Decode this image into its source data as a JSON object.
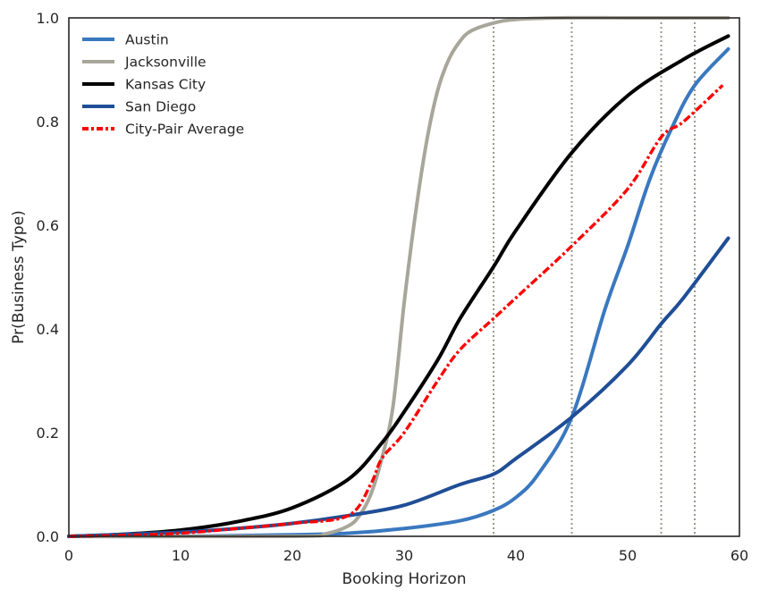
{
  "chart_data": {
    "type": "line",
    "xlabel": "Booking Horizon",
    "ylabel": "Pr(Business Type)",
    "xlim": [
      0,
      60
    ],
    "ylim": [
      0,
      1.0
    ],
    "x_ticks": [
      "0",
      "10",
      "20",
      "30",
      "40",
      "50",
      "60"
    ],
    "y_ticks": [
      "0.0",
      "0.2",
      "0.4",
      "0.6",
      "0.8",
      "1.0"
    ],
    "grid": false,
    "legend_position": "top-left",
    "vertical_reference_lines": [
      38,
      45,
      53,
      56
    ],
    "reference_line_color": "#9a9a8a",
    "series": [
      {
        "name": "Austin",
        "color": "#3a78bf",
        "style": "solid",
        "x": [
          0,
          10,
          20,
          25,
          30,
          35,
          38,
          40,
          42,
          45,
          48,
          50,
          52,
          54,
          56,
          59
        ],
        "y": [
          0.0,
          0.0,
          0.003,
          0.006,
          0.015,
          0.03,
          0.05,
          0.075,
          0.12,
          0.23,
          0.44,
          0.56,
          0.69,
          0.79,
          0.87,
          0.94
        ]
      },
      {
        "name": "Jacksonville",
        "color": "#a8a69a",
        "style": "solid",
        "x": [
          0,
          20,
          23,
          25,
          26,
          27,
          28,
          29,
          30,
          31,
          32,
          33,
          34,
          35,
          36,
          38,
          40,
          44,
          50,
          59
        ],
        "y": [
          0.0,
          0.0,
          0.005,
          0.02,
          0.04,
          0.08,
          0.15,
          0.25,
          0.45,
          0.62,
          0.76,
          0.86,
          0.92,
          0.955,
          0.975,
          0.99,
          0.997,
          1.0,
          1.0,
          1.0
        ]
      },
      {
        "name": "Kansas City",
        "color": "#000000",
        "style": "solid",
        "x": [
          0,
          5,
          10,
          15,
          20,
          25,
          28,
          30,
          33,
          35,
          38,
          40,
          45,
          50,
          55,
          59
        ],
        "y": [
          0.0,
          0.004,
          0.012,
          0.028,
          0.055,
          0.11,
          0.18,
          0.24,
          0.34,
          0.42,
          0.52,
          0.59,
          0.74,
          0.85,
          0.92,
          0.965
        ]
      },
      {
        "name": "San Diego",
        "color": "#1f4e96",
        "style": "solid",
        "x": [
          0,
          10,
          15,
          20,
          25,
          30,
          35,
          38,
          40,
          45,
          50,
          53,
          55,
          59
        ],
        "y": [
          0.0,
          0.008,
          0.015,
          0.025,
          0.04,
          0.06,
          0.1,
          0.12,
          0.15,
          0.23,
          0.33,
          0.41,
          0.46,
          0.575
        ]
      },
      {
        "name": "City-Pair Average",
        "color": "#ff0000",
        "style": "dashdot",
        "x": [
          0,
          5,
          10,
          15,
          20,
          25,
          27,
          28,
          30,
          33,
          35,
          38,
          40,
          45,
          50,
          53,
          55,
          58.5
        ],
        "y": [
          0.0,
          0.002,
          0.006,
          0.015,
          0.025,
          0.04,
          0.1,
          0.15,
          0.2,
          0.3,
          0.36,
          0.42,
          0.46,
          0.56,
          0.67,
          0.77,
          0.8,
          0.87
        ]
      }
    ]
  }
}
